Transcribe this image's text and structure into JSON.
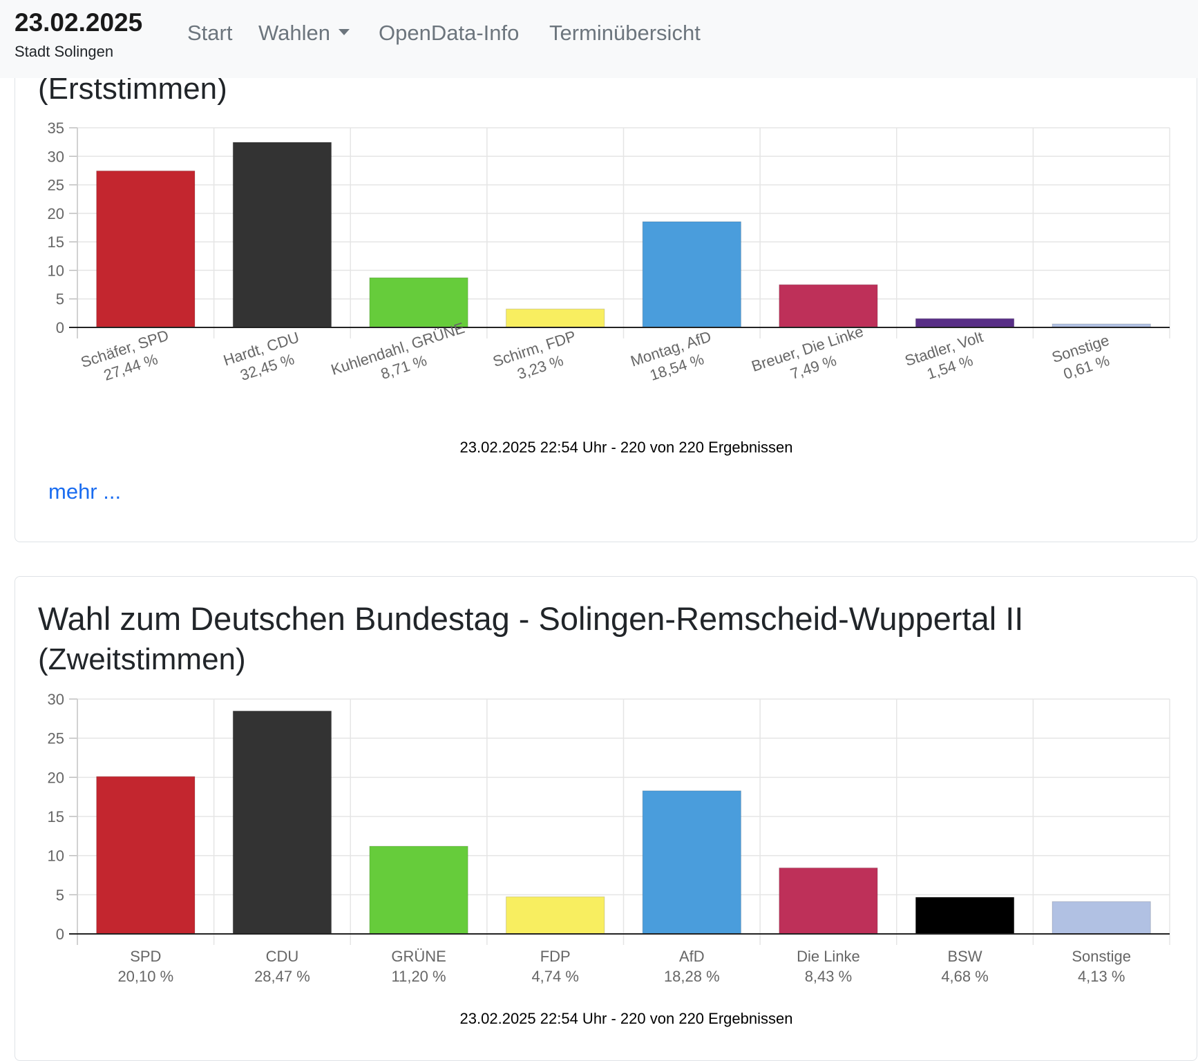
{
  "navbar": {
    "date": "23.02.2025",
    "city": "Stadt Solingen",
    "links": [
      "Start",
      "Wahlen",
      "OpenData-Info",
      "Terminübersicht"
    ]
  },
  "card1": {
    "heading_tail": "(Erststimmen)",
    "more_link": "mehr ..."
  },
  "card2": {
    "heading_line1": "Wahl zum Deutschen Bundestag - Solingen-Remscheid-Wuppertal II",
    "heading_line2": "(Zweitstimmen)"
  },
  "colors": {
    "SPD": "#c3262f",
    "CDU": "#333333",
    "GRUENE": "#66cc3b",
    "FDP": "#f8ee60",
    "AfD": "#4a9ddc",
    "LINKE": "#be3059",
    "VOLT": "#582e86",
    "BSW": "#000000",
    "SONSTIGE": "#b1c1e3"
  },
  "chart_data": [
    {
      "type": "bar",
      "title": "(Erststimmen)",
      "categories": [
        "Schäfer, SPD",
        "Hardt, CDU",
        "Kuhlendahl, GRÜNE",
        "Schirm, FDP",
        "Montag, AfD",
        "Breuer, Die Linke",
        "Stadler, Volt",
        "Sonstige"
      ],
      "value_labels": [
        "27,44 %",
        "32,45 %",
        "8,71 %",
        "3,23 %",
        "18,54 %",
        "7,49 %",
        "1,54 %",
        "0,61 %"
      ],
      "values": [
        27.44,
        32.45,
        8.71,
        3.23,
        18.54,
        7.49,
        1.54,
        0.61
      ],
      "bar_colors": [
        "#c3262f",
        "#333333",
        "#66cc3b",
        "#f8ee60",
        "#4a9ddc",
        "#be3059",
        "#582e86",
        "#b1c1e3"
      ],
      "yticks": [
        0,
        5,
        10,
        15,
        20,
        25,
        30,
        35
      ],
      "ylim": [
        0,
        35
      ],
      "xlabel": "23.02.2025 22:54 Uhr - 220 von 220 Ergebnissen",
      "ylabel": "",
      "rotated_labels": true
    },
    {
      "type": "bar",
      "title": "Wahl zum Deutschen Bundestag - Solingen-Remscheid-Wuppertal II (Zweitstimmen)",
      "categories": [
        "SPD",
        "CDU",
        "GRÜNE",
        "FDP",
        "AfD",
        "Die Linke",
        "BSW",
        "Sonstige"
      ],
      "value_labels": [
        "20,10 %",
        "28,47 %",
        "11,20 %",
        "4,74 %",
        "18,28 %",
        "8,43 %",
        "4,68 %",
        "4,13 %"
      ],
      "values": [
        20.1,
        28.47,
        11.2,
        4.74,
        18.28,
        8.43,
        4.68,
        4.13
      ],
      "bar_colors": [
        "#c3262f",
        "#333333",
        "#66cc3b",
        "#f8ee60",
        "#4a9ddc",
        "#be3059",
        "#000000",
        "#b1c1e3"
      ],
      "yticks": [
        0,
        5,
        10,
        15,
        20,
        25,
        30
      ],
      "ylim": [
        0,
        30
      ],
      "xlabel": "23.02.2025 22:54 Uhr - 220 von 220 Ergebnissen",
      "ylabel": "",
      "rotated_labels": false
    }
  ]
}
